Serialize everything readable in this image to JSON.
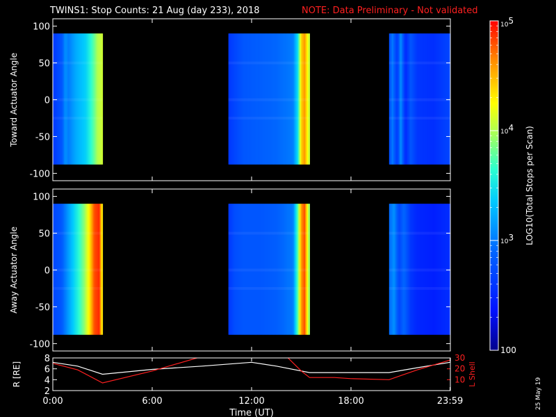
{
  "title": {
    "main": "TWINS1: Stop Counts: 21 Aug (day 233), 2018",
    "note": "NOTE: Data Preliminary - Not validated",
    "note_color": "#ff2020"
  },
  "stamp": "25 May 19",
  "colorbar": {
    "label": "LOG10(Total Stops per Scan)",
    "tick_labels": [
      "10^5",
      "10^4",
      "10^3",
      "100"
    ],
    "scale": "log",
    "range": [
      100,
      100000
    ],
    "palette": "rainbow (blue to red)"
  },
  "chart_data": [
    {
      "type": "heatmap",
      "name": "toward-panel",
      "title": "",
      "ylabel": "Toward Actuator Angle",
      "xlabel": "",
      "xlim": [
        0,
        24
      ],
      "ylim": [
        -110,
        110
      ],
      "yticks": [
        100,
        50,
        0,
        -50,
        -100
      ],
      "data_extent_angle": [
        -88,
        90
      ],
      "segments": [
        {
          "start": 0.0,
          "end": 3.0,
          "profile": [
            [
              0.0,
              2.6
            ],
            [
              0.55,
              2.8
            ],
            [
              0.75,
              3.1
            ],
            [
              0.95,
              3.0
            ],
            [
              1.35,
              3.2
            ],
            [
              2.0,
              3.4
            ],
            [
              2.5,
              3.8
            ],
            [
              2.7,
              4.0
            ],
            [
              3.0,
              4.1
            ]
          ]
        },
        {
          "start": 10.6,
          "end": 15.5,
          "profile": [
            [
              10.6,
              2.6
            ],
            [
              11.0,
              2.7
            ],
            [
              11.5,
              2.8
            ],
            [
              12.5,
              2.85
            ],
            [
              13.5,
              2.9
            ],
            [
              14.5,
              3.0
            ],
            [
              14.8,
              3.5
            ],
            [
              15.0,
              4.4
            ],
            [
              15.2,
              4.6
            ],
            [
              15.5,
              4.0
            ]
          ]
        },
        {
          "start": 20.3,
          "end": 23.98,
          "profile": [
            [
              20.3,
              2.7
            ],
            [
              20.5,
              3.0
            ],
            [
              20.8,
              2.6
            ],
            [
              21.0,
              3.1
            ],
            [
              21.3,
              2.5
            ],
            [
              21.6,
              2.8
            ],
            [
              22.0,
              2.6
            ],
            [
              23.0,
              2.55
            ],
            [
              23.98,
              2.7
            ]
          ]
        }
      ],
      "zscale": "log10",
      "zlim": [
        2,
        5
      ]
    },
    {
      "type": "heatmap",
      "name": "away-panel",
      "title": "",
      "ylabel": "Away Actuator Angle",
      "xlabel": "",
      "xlim": [
        0,
        24
      ],
      "ylim": [
        -110,
        110
      ],
      "yticks": [
        100,
        50,
        0,
        -50,
        -100
      ],
      "data_extent_angle": [
        -88,
        90
      ],
      "segments": [
        {
          "start": 0.0,
          "end": 3.0,
          "profile": [
            [
              0.0,
              2.7
            ],
            [
              0.5,
              2.8
            ],
            [
              1.0,
              3.2
            ],
            [
              1.4,
              3.5
            ],
            [
              1.9,
              3.9
            ],
            [
              2.2,
              4.3
            ],
            [
              2.5,
              4.8
            ],
            [
              2.8,
              4.9
            ],
            [
              3.0,
              4.2
            ]
          ]
        },
        {
          "start": 10.6,
          "end": 15.5,
          "profile": [
            [
              10.6,
              2.6
            ],
            [
              11.0,
              2.75
            ],
            [
              11.5,
              2.8
            ],
            [
              12.5,
              2.8
            ],
            [
              13.5,
              2.85
            ],
            [
              14.5,
              3.0
            ],
            [
              14.8,
              3.8
            ],
            [
              15.0,
              4.6
            ],
            [
              15.2,
              4.8
            ],
            [
              15.5,
              3.8
            ]
          ]
        },
        {
          "start": 20.3,
          "end": 23.98,
          "profile": [
            [
              20.3,
              2.9
            ],
            [
              20.6,
              3.1
            ],
            [
              20.9,
              2.7
            ],
            [
              21.2,
              2.9
            ],
            [
              21.6,
              2.6
            ],
            [
              22.0,
              2.5
            ],
            [
              23.0,
              2.45
            ],
            [
              23.98,
              2.55
            ]
          ]
        }
      ],
      "zscale": "log10",
      "zlim": [
        2,
        5
      ]
    },
    {
      "type": "line",
      "name": "orbit-panel",
      "title": "",
      "xlabel": "Time (UT)",
      "ylabel": "R [RE]",
      "ylabel_right": "L Shell",
      "xlim": [
        0,
        24
      ],
      "ylim": [
        2,
        8
      ],
      "ylim_right": [
        0,
        30
      ],
      "x_ticks": [
        0,
        6,
        12,
        18,
        23.98
      ],
      "x_tick_labels": [
        "0:00",
        "6:00",
        "12:00",
        "18:00",
        "23:59"
      ],
      "yticks": [
        2,
        4,
        6,
        8
      ],
      "yticks_right": [
        10,
        20,
        30
      ],
      "series": [
        {
          "name": "R [RE]",
          "color": "#ffffff",
          "axis": "left",
          "x": [
            0,
            1.5,
            3.0,
            6.0,
            9.0,
            12.0,
            13.5,
            15.5,
            18.0,
            20.3,
            22.0,
            23.98
          ],
          "y": [
            7.2,
            6.5,
            5.0,
            5.9,
            6.5,
            7.2,
            6.5,
            5.3,
            5.3,
            5.3,
            6.2,
            7.2
          ]
        },
        {
          "name": "L Shell",
          "color": "#ff2020",
          "axis": "right",
          "x": [
            0,
            1.5,
            3.0,
            6.0,
            8.7,
            9.2,
            13.6,
            14.2,
            15.0,
            15.5,
            17.0,
            18.0,
            20.3,
            22.0,
            23.98
          ],
          "y": [
            25,
            19,
            7,
            18,
            30,
            33,
            33,
            30,
            18,
            12,
            12,
            11,
            10,
            19,
            28
          ]
        }
      ]
    }
  ]
}
